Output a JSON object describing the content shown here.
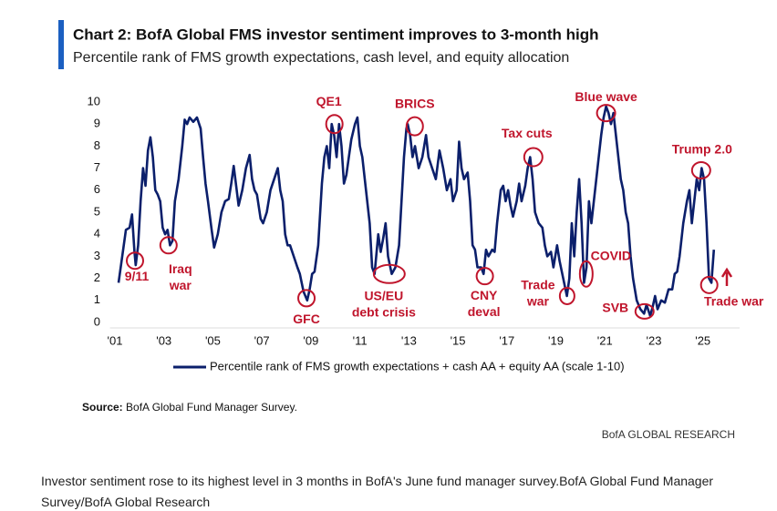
{
  "chart_data": {
    "type": "line",
    "title": "Chart 2: BofA Global FMS investor sentiment improves to 3-month high",
    "subtitle": "Percentile rank of FMS growth expectations, cash level, and equity allocation",
    "xlim": [
      2000.8,
      2026.5
    ],
    "xticks": [
      {
        "value": 2001,
        "label": "'01"
      },
      {
        "value": 2003,
        "label": "'03"
      },
      {
        "value": 2005,
        "label": "'05"
      },
      {
        "value": 2007,
        "label": "'07"
      },
      {
        "value": 2009,
        "label": "'09"
      },
      {
        "value": 2011,
        "label": "'11"
      },
      {
        "value": 2013,
        "label": "'13"
      },
      {
        "value": 2015,
        "label": "'15"
      },
      {
        "value": 2017,
        "label": "'17"
      },
      {
        "value": 2019,
        "label": "'19"
      },
      {
        "value": 2021,
        "label": "'21"
      },
      {
        "value": 2023,
        "label": "'23"
      },
      {
        "value": 2025,
        "label": "'25"
      }
    ],
    "ylim": [
      0,
      10
    ],
    "yticks": [
      0,
      1,
      2,
      3,
      4,
      5,
      6,
      7,
      8,
      9,
      10
    ],
    "grid": false,
    "legend": "bottom",
    "x": [
      2001.15,
      2001.3,
      2001.45,
      2001.6,
      2001.7,
      2001.8,
      2001.85,
      2001.95,
      2002.05,
      2002.15,
      2002.25,
      2002.35,
      2002.45,
      2002.55,
      2002.65,
      2002.75,
      2002.85,
      2002.95,
      2003.05,
      2003.15,
      2003.25,
      2003.35,
      2003.45,
      2003.6,
      2003.75,
      2003.85,
      2003.95,
      2004.05,
      2004.2,
      2004.35,
      2004.5,
      2004.6,
      2004.7,
      2004.8,
      2004.95,
      2005.05,
      2005.2,
      2005.35,
      2005.5,
      2005.65,
      2005.75,
      2005.85,
      2005.95,
      2006.05,
      2006.2,
      2006.35,
      2006.5,
      2006.6,
      2006.7,
      2006.8,
      2006.95,
      2007.05,
      2007.2,
      2007.35,
      2007.5,
      2007.65,
      2007.75,
      2007.85,
      2007.95,
      2008.05,
      2008.15,
      2008.3,
      2008.45,
      2008.55,
      2008.7,
      2008.85,
      2008.95,
      2009.05,
      2009.15,
      2009.3,
      2009.45,
      2009.55,
      2009.65,
      2009.75,
      2009.85,
      2009.95,
      2010.05,
      2010.15,
      2010.25,
      2010.35,
      2010.45,
      2010.55,
      2010.65,
      2010.8,
      2010.9,
      2011.0,
      2011.1,
      2011.25,
      2011.4,
      2011.5,
      2011.6,
      2011.75,
      2011.85,
      2011.95,
      2012.05,
      2012.15,
      2012.3,
      2012.45,
      2012.6,
      2012.7,
      2012.8,
      2012.9,
      2012.95,
      2013.05,
      2013.15,
      2013.25,
      2013.4,
      2013.55,
      2013.7,
      2013.8,
      2013.95,
      2014.1,
      2014.25,
      2014.4,
      2014.55,
      2014.7,
      2014.8,
      2014.95,
      2015.05,
      2015.15,
      2015.25,
      2015.4,
      2015.5,
      2015.6,
      2015.7,
      2015.8,
      2015.95,
      2016.05,
      2016.15,
      2016.25,
      2016.4,
      2016.5,
      2016.6,
      2016.75,
      2016.85,
      2016.95,
      2017.05,
      2017.15,
      2017.25,
      2017.4,
      2017.5,
      2017.6,
      2017.75,
      2017.85,
      2017.95,
      2018.05,
      2018.15,
      2018.3,
      2018.45,
      2018.55,
      2018.65,
      2018.8,
      2018.9,
      2019.05,
      2019.15,
      2019.3,
      2019.45,
      2019.55,
      2019.65,
      2019.75,
      2019.85,
      2019.95,
      2020.05,
      2020.15,
      2020.25,
      2020.35,
      2020.45,
      2020.55,
      2020.65,
      2020.75,
      2020.85,
      2020.95,
      2021.05,
      2021.15,
      2021.25,
      2021.35,
      2021.45,
      2021.55,
      2021.65,
      2021.75,
      2021.85,
      2021.95,
      2022.05,
      2022.15,
      2022.3,
      2022.45,
      2022.6,
      2022.7,
      2022.85,
      2022.95,
      2023.05,
      2023.15,
      2023.3,
      2023.45,
      2023.6,
      2023.75,
      2023.85,
      2023.95,
      2024.05,
      2024.2,
      2024.35,
      2024.45,
      2024.55,
      2024.65,
      2024.75,
      2024.85,
      2024.95,
      2025.05,
      2025.15,
      2025.25,
      2025.35,
      2025.45
    ],
    "series": [
      {
        "name": "Percentile rank of FMS growth expectations + cash AA + equity AA (scale 1-10)",
        "color": "#0b1f6b",
        "values": [
          1.8,
          3.0,
          4.2,
          4.3,
          4.9,
          3.2,
          2.6,
          3.5,
          5.5,
          7.0,
          6.2,
          7.8,
          8.4,
          7.5,
          6.0,
          5.8,
          5.5,
          4.3,
          4.0,
          4.2,
          3.5,
          3.7,
          5.5,
          6.5,
          8.0,
          9.2,
          9.0,
          9.3,
          9.1,
          9.3,
          8.8,
          7.5,
          6.3,
          5.5,
          4.2,
          3.4,
          4.0,
          5.0,
          5.5,
          5.6,
          6.3,
          7.1,
          6.2,
          5.3,
          6.0,
          7.0,
          7.6,
          6.5,
          6.0,
          5.8,
          4.7,
          4.5,
          5.0,
          6.0,
          6.5,
          7.0,
          6.0,
          5.5,
          4.0,
          3.5,
          3.5,
          3.0,
          2.5,
          2.2,
          1.4,
          1.0,
          1.5,
          2.2,
          2.3,
          3.5,
          6.3,
          7.5,
          8.0,
          7.0,
          9.0,
          8.5,
          7.5,
          9.0,
          8.0,
          6.3,
          6.7,
          7.5,
          8.3,
          9.0,
          9.3,
          8.0,
          7.5,
          6.0,
          4.5,
          2.5,
          2.2,
          4.0,
          3.2,
          3.8,
          4.5,
          3.0,
          2.2,
          2.5,
          3.5,
          5.5,
          7.5,
          8.8,
          9.0,
          8.5,
          7.5,
          8.0,
          7.0,
          7.5,
          8.5,
          7.5,
          7.0,
          6.5,
          7.8,
          7.0,
          6.0,
          6.5,
          5.5,
          6.0,
          8.2,
          7.0,
          6.5,
          6.8,
          5.5,
          3.5,
          3.3,
          2.5,
          2.5,
          2.2,
          3.3,
          3.0,
          3.3,
          3.2,
          4.5,
          6.0,
          6.2,
          5.5,
          6.0,
          5.3,
          4.8,
          5.5,
          6.3,
          5.5,
          6.2,
          7.0,
          7.5,
          6.5,
          5.0,
          4.5,
          4.3,
          3.5,
          3.0,
          3.2,
          2.5,
          3.5,
          2.8,
          2.0,
          1.2,
          2.0,
          4.5,
          3.0,
          5.0,
          6.5,
          4.5,
          1.8,
          2.5,
          5.5,
          4.5,
          5.5,
          6.5,
          7.5,
          8.5,
          9.3,
          9.8,
          9.5,
          9.0,
          9.5,
          8.5,
          7.5,
          6.5,
          6.0,
          5.0,
          4.5,
          3.0,
          2.0,
          1.0,
          0.6,
          0.4,
          0.8,
          0.3,
          0.7,
          1.2,
          0.6,
          1.0,
          0.9,
          1.5,
          1.5,
          2.2,
          2.3,
          3.0,
          4.5,
          5.5,
          6.0,
          4.5,
          5.5,
          6.5,
          6.0,
          7.0,
          6.5,
          4.5,
          2.0,
          1.8,
          3.3
        ]
      }
    ],
    "annotations": [
      {
        "lines": [
          "9/11"
        ],
        "x": 2001.82,
        "y": 2.8,
        "color": "#c0152c"
      },
      {
        "lines": [
          "Iraq",
          "war"
        ],
        "x": 2003.19,
        "y": 3.5,
        "color": "#c0152c"
      },
      {
        "lines": [
          "GFC"
        ],
        "x": 2008.82,
        "y": 1.1,
        "color": "#c0152c"
      },
      {
        "lines": [
          "QE1"
        ],
        "x": 2009.96,
        "y": 9.0,
        "color": "#c0152c"
      },
      {
        "lines": [
          "US/EU",
          "debt crisis"
        ],
        "x": 2012.2,
        "y": 2.2,
        "color": "#c0152c"
      },
      {
        "lines": [
          "BRICS"
        ],
        "x": 2013.24,
        "y": 8.9,
        "color": "#c0152c"
      },
      {
        "lines": [
          "CNY",
          "deval"
        ],
        "x": 2016.1,
        "y": 2.1,
        "color": "#c0152c"
      },
      {
        "lines": [
          "Tax cuts"
        ],
        "x": 2018.08,
        "y": 7.5,
        "color": "#c0152c"
      },
      {
        "lines": [
          "Trade",
          "war"
        ],
        "x": 2019.46,
        "y": 1.2,
        "color": "#c0152c"
      },
      {
        "lines": [
          "COVID"
        ],
        "x": 2020.24,
        "y": 2.2,
        "color": "#c0152c"
      },
      {
        "lines": [
          "Blue wave"
        ],
        "x": 2021.05,
        "y": 9.5,
        "color": "#c0152c"
      },
      {
        "lines": [
          "SVB"
        ],
        "x": 2022.62,
        "y": 0.5,
        "color": "#c0152c"
      },
      {
        "lines": [
          "Trump 2.0"
        ],
        "x": 2024.93,
        "y": 6.9,
        "color": "#c0152c"
      },
      {
        "lines": [
          "Trade war"
        ],
        "x": 2025.26,
        "y": 1.7,
        "color": "#c0152c"
      }
    ],
    "source_label": "Source:",
    "source": "BofA Global Fund Manager Survey.",
    "brand": "BofA GLOBAL RESEARCH"
  },
  "caption": "Investor sentiment rose to its highest level in 3 months in BofA's June fund manager survey.BofA Global Fund Manager Survey/BofA Global Research"
}
